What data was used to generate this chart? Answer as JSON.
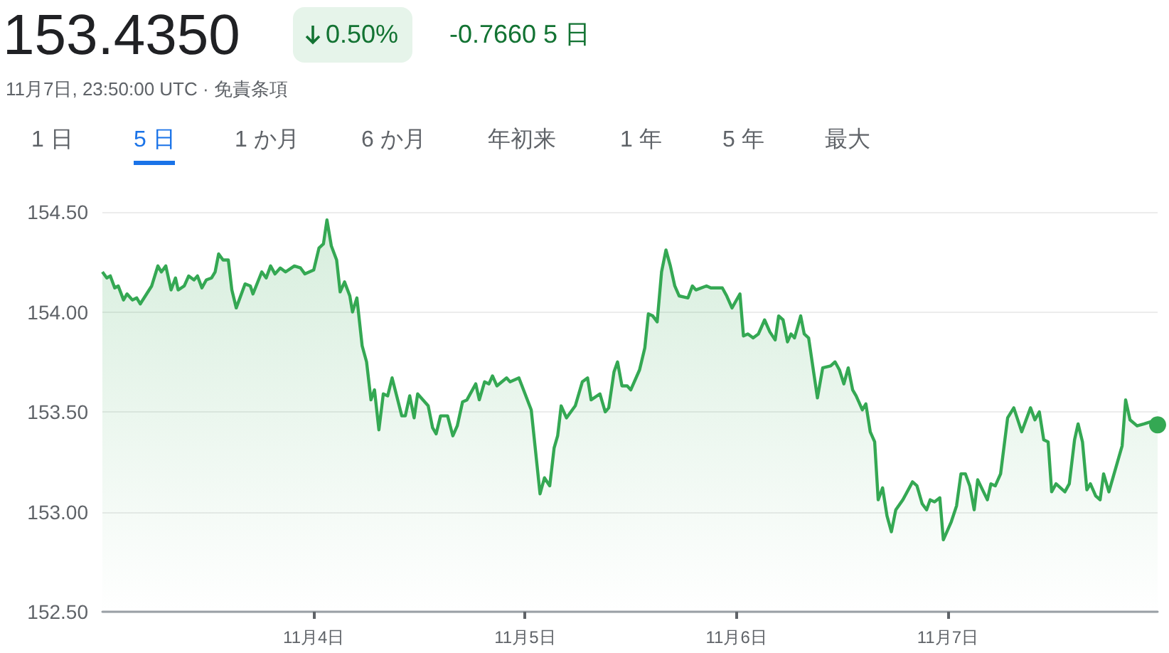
{
  "chart_data": {
    "type": "area",
    "title": "153.4350",
    "subtitle": "11月7日, 23:50:00 UTC · 免責条項",
    "annotations": [
      "0.50%",
      "-0.7660 5 日",
      "1 日",
      "5 日",
      "1 か月",
      "6 か月",
      "年初来",
      "1 年",
      "5 年",
      "最大"
    ],
    "xlim": [
      "--11-03T00:00",
      "--11-07T23:50"
    ],
    "xticks": [
      {
        "value": "--11-04",
        "label": "11月4日"
      },
      {
        "value": "--11-05",
        "label": "11月5日"
      },
      {
        "value": "--11-06",
        "label": "11月6日"
      },
      {
        "value": "--11-07",
        "label": "11月7日"
      }
    ],
    "ylim": [
      152.5,
      154.5
    ],
    "yticks": [
      {
        "value": 152.5,
        "label": "152.50"
      },
      {
        "value": 153,
        "label": "153.00"
      },
      {
        "value": 153.5,
        "label": "153.50"
      },
      {
        "value": 154,
        "label": "154.00"
      },
      {
        "value": 154.5,
        "label": "154.50"
      }
    ],
    "grid": "y",
    "series": [
      {
        "color": "#34a853",
        "x": [
          "--11-03T00:00",
          "--11-03T00:30",
          "--11-03T00:54",
          "--11-03T01:24",
          "--11-03T01:48",
          "--11-03T02:24",
          "--11-03T02:48",
          "--11-03T03:24",
          "--11-03T03:54",
          "--11-03T04:18",
          "--11-03T05:36",
          "--11-03T06:18",
          "--11-03T06:42",
          "--11-03T07:12",
          "--11-03T07:48",
          "--11-03T08:18",
          "--11-03T08:36",
          "--11-03T09:18",
          "--11-03T09:48",
          "--11-03T10:24",
          "--11-03T10:48",
          "--11-03T11:18",
          "--11-03T11:48",
          "--11-03T12:24",
          "--11-03T12:48",
          "--11-03T13:12",
          "--11-03T13:42",
          "--11-03T14:18",
          "--11-03T14:42",
          "--11-03T15:12",
          "--11-03T16:12",
          "--11-03T16:48",
          "--11-03T17:06",
          "--11-03T18:06",
          "--11-03T18:36",
          "--11-03T19:06",
          "--11-03T19:36",
          "--11-03T20:12",
          "--11-03T20:48",
          "--11-03T21:48",
          "--11-03T22:30",
          "--11-03T23:00",
          "--11-04T00:00",
          "--11-04T00:36",
          "--11-04T01:06",
          "--11-04T01:30",
          "--11-04T02:00",
          "--11-04T02:36",
          "--11-04T03:00",
          "--11-04T03:30",
          "--11-04T04:06",
          "--11-04T04:24",
          "--11-04T04:54",
          "--11-04T05:30",
          "--11-04T06:00",
          "--11-04T06:30",
          "--11-04T06:54",
          "--11-04T07:24",
          "--11-04T07:54",
          "--11-04T08:24",
          "--11-04T08:54",
          "--11-04T10:00",
          "--11-04T10:24",
          "--11-04T10:54",
          "--11-04T11:24",
          "--11-04T11:48",
          "--11-04T13:00",
          "--11-04T13:30",
          "--11-04T13:54",
          "--11-04T14:24",
          "--11-04T15:12",
          "--11-04T15:48",
          "--11-04T16:18",
          "--11-04T16:54",
          "--11-04T17:24",
          "--11-04T18:24",
          "--11-04T18:48",
          "--11-04T19:24",
          "--11-04T19:54",
          "--11-04T20:18",
          "--11-04T20:48",
          "--11-04T21:54",
          "--11-04T22:18",
          "--11-04T23:18",
          "--11-05T00:42",
          "--11-05T01:42",
          "--11-05T02:12",
          "--11-05T02:48",
          "--11-05T03:18",
          "--11-05T03:42",
          "--11-05T04:06",
          "--11-05T04:42",
          "--11-05T05:12",
          "--11-05T05:42",
          "--11-05T06:30",
          "--11-05T07:06",
          "--11-05T07:30",
          "--11-05T08:30",
          "--11-05T09:06",
          "--11-05T09:30",
          "--11-05T10:06",
          "--11-05T10:30",
          "--11-05T11:00",
          "--11-05T11:36",
          "--11-05T12:00",
          "--11-05T13:00",
          "--11-05T13:36",
          "--11-05T14:00",
          "--11-05T14:30",
          "--11-05T15:00",
          "--11-05T15:30",
          "--11-05T16:00",
          "--11-05T16:30",
          "--11-05T17:00",
          "--11-05T17:30",
          "--11-05T18:30",
          "--11-05T19:00",
          "--11-05T19:24",
          "--11-05T20:36",
          "--11-05T21:06",
          "--11-05T22:24",
          "--11-05T22:54",
          "--11-05T23:30",
          "--11-06T00:24",
          "--11-06T00:48",
          "--11-06T01:18",
          "--11-06T01:54",
          "--11-06T02:30",
          "--11-06T03:12",
          "--11-06T03:48",
          "--11-06T04:24",
          "--11-06T04:48",
          "--11-06T05:18",
          "--11-06T05:48",
          "--11-06T06:12",
          "--11-06T06:36",
          "--11-06T07:18",
          "--11-06T07:42",
          "--11-06T08:12",
          "--11-06T08:48",
          "--11-06T09:12",
          "--11-06T09:48",
          "--11-06T10:42",
          "--11-06T11:12",
          "--11-06T11:42",
          "--11-06T12:12",
          "--11-06T12:42",
          "--11-06T13:12",
          "--11-06T13:36",
          "--11-06T14:18",
          "--11-06T14:42",
          "--11-06T15:12",
          "--11-06T15:42",
          "--11-06T16:06",
          "--11-06T16:36",
          "--11-06T17:06",
          "--11-06T17:36",
          "--11-06T18:06",
          "--11-06T18:54",
          "--11-06T20:00",
          "--11-06T20:30",
          "--11-06T21:06",
          "--11-06T21:36",
          "--11-06T22:00",
          "--11-06T22:30",
          "--11-06T23:06",
          "--11-06T23:30",
          "--11-07T00:24",
          "--11-07T01:00",
          "--11-07T01:30",
          "--11-07T02:00",
          "--11-07T02:30",
          "--11-07T03:00",
          "--11-07T03:24",
          "--11-07T04:30",
          "--11-07T04:54",
          "--11-07T05:24",
          "--11-07T06:00",
          "--11-07T06:48",
          "--11-07T07:30",
          "--11-07T08:24",
          "--11-07T09:24",
          "--11-07T09:54",
          "--11-07T10:24",
          "--11-07T10:54",
          "--11-07T11:24",
          "--11-07T11:48",
          "--11-07T12:18",
          "--11-07T13:18",
          "--11-07T13:48",
          "--11-07T14:24",
          "--11-07T14:48",
          "--11-07T15:18",
          "--11-07T15:48",
          "--11-07T16:12",
          "--11-07T16:48",
          "--11-07T17:18",
          "--11-07T17:42",
          "--11-07T18:18",
          "--11-07T19:48",
          "--11-07T20:12",
          "--11-07T20:42",
          "--11-07T21:30",
          "--11-07T22:18",
          "--11-07T23:00",
          "--11-07T23:50"
        ],
        "values": [
          154.2,
          154.17,
          154.18,
          154.12,
          154.13,
          154.06,
          154.09,
          154.06,
          154.07,
          154.04,
          154.13,
          154.23,
          154.2,
          154.23,
          154.11,
          154.17,
          154.11,
          154.13,
          154.18,
          154.16,
          154.18,
          154.12,
          154.16,
          154.17,
          154.2,
          154.29,
          154.26,
          154.26,
          154.11,
          154.02,
          154.14,
          154.13,
          154.09,
          154.2,
          154.17,
          154.23,
          154.19,
          154.22,
          154.2,
          154.23,
          154.22,
          154.19,
          154.21,
          154.32,
          154.34,
          154.46,
          154.33,
          154.26,
          154.1,
          154.15,
          154.08,
          154.0,
          154.07,
          153.83,
          153.75,
          153.56,
          153.61,
          153.41,
          153.59,
          153.58,
          153.67,
          153.48,
          153.48,
          153.58,
          153.47,
          153.59,
          153.53,
          153.42,
          153.39,
          153.48,
          153.48,
          153.38,
          153.43,
          153.55,
          153.56,
          153.64,
          153.56,
          153.65,
          153.64,
          153.68,
          153.63,
          153.67,
          153.65,
          153.67,
          153.51,
          153.09,
          153.17,
          153.13,
          153.32,
          153.38,
          153.53,
          153.47,
          153.5,
          153.53,
          153.65,
          153.67,
          153.56,
          153.59,
          153.5,
          153.52,
          153.7,
          153.75,
          153.63,
          153.63,
          153.61,
          153.71,
          153.82,
          153.99,
          153.98,
          153.95,
          154.2,
          154.31,
          154.23,
          154.13,
          154.08,
          154.07,
          154.13,
          154.11,
          154.13,
          154.12,
          154.12,
          154.08,
          154.02,
          154.09,
          153.88,
          153.89,
          153.87,
          153.89,
          153.96,
          153.9,
          153.86,
          153.98,
          153.96,
          153.85,
          153.89,
          153.87,
          153.98,
          153.89,
          153.87,
          153.69,
          153.57,
          153.72,
          153.73,
          153.75,
          153.71,
          153.64,
          153.72,
          153.61,
          153.58,
          153.51,
          153.54,
          153.4,
          153.35,
          153.06,
          153.12,
          152.98,
          152.9,
          153.01,
          153.06,
          153.15,
          153.13,
          153.04,
          153.01,
          153.06,
          153.05,
          153.07,
          152.86,
          152.95,
          153.03,
          153.19,
          153.19,
          153.13,
          153.01,
          153.16,
          153.06,
          153.14,
          153.13,
          153.19,
          153.47,
          153.52,
          153.4,
          153.52,
          153.46,
          153.5,
          153.36,
          153.35,
          153.1,
          153.14,
          153.1,
          153.14,
          153.36,
          153.44,
          153.35,
          153.11,
          153.14,
          153.08,
          153.06,
          153.19,
          153.1,
          153.33,
          153.56,
          153.46,
          153.43,
          153.44,
          153.45,
          153.435
        ]
      }
    ]
  }
}
